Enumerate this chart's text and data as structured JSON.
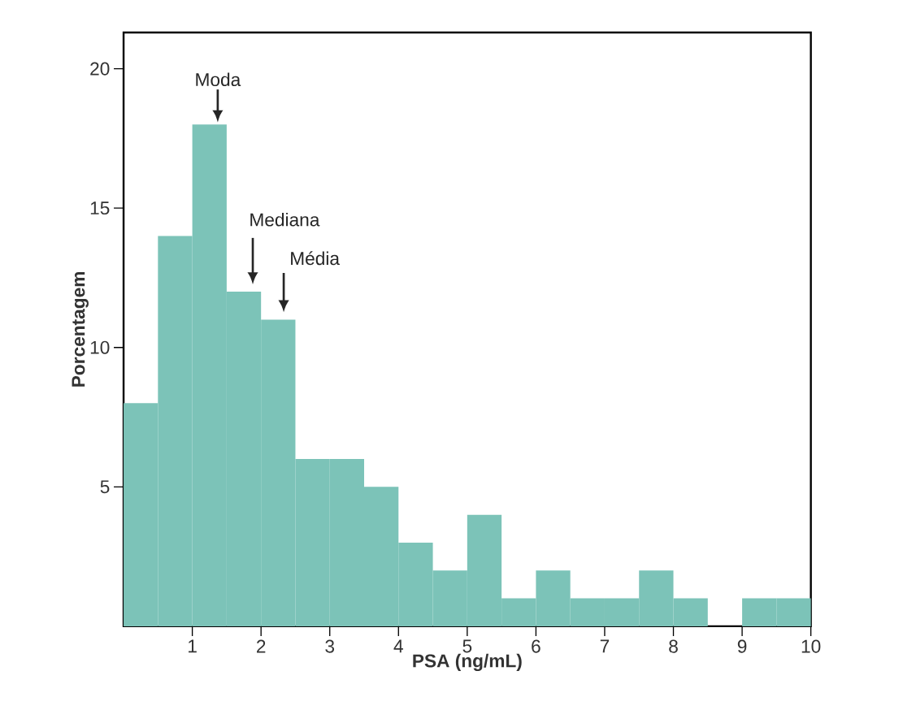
{
  "chart_data": {
    "type": "histogram",
    "xlabel": "PSA (ng/mL)",
    "ylabel": "Porcentagem",
    "color": "#7cc3b8",
    "bins": [
      0,
      0.5,
      1,
      1.5,
      2,
      2.5,
      3,
      3.5,
      4,
      4.5,
      5,
      5.5,
      6,
      6.5,
      7,
      7.5,
      8,
      8.5,
      9,
      9.5,
      10
    ],
    "values": [
      8,
      14,
      18,
      12,
      11,
      6,
      6,
      5,
      3,
      2,
      4,
      1,
      2,
      1,
      1,
      2,
      1,
      0,
      1,
      1
    ],
    "xlim": [
      0,
      10
    ],
    "ylim": [
      0,
      21.3
    ],
    "xticks": [
      1,
      2,
      3,
      4,
      5,
      6,
      7,
      8,
      9,
      10
    ],
    "yticks": [
      5,
      10,
      15,
      20
    ],
    "annotations": [
      "Moda",
      "Mediana",
      "Média"
    ]
  }
}
